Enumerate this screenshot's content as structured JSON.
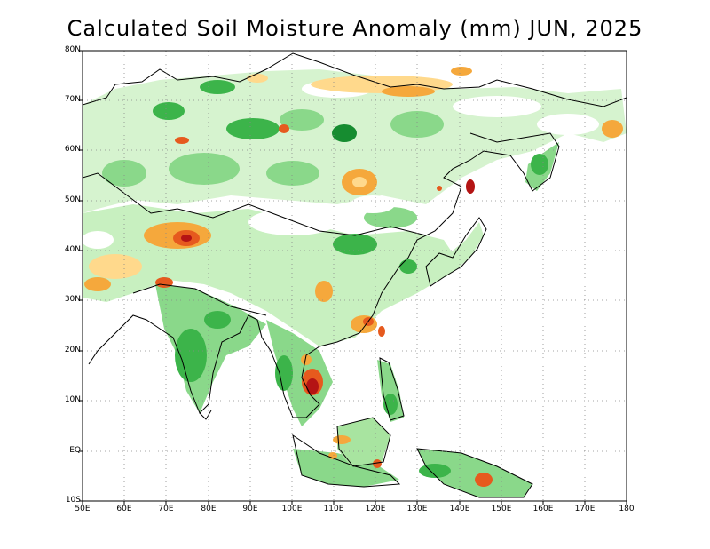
{
  "title": "Calculated Soil Moisture Anomaly (mm) JUN, 2025",
  "map": {
    "projection": "lat-lon",
    "lon_range": [
      50,
      180
    ],
    "lat_range": [
      -10,
      80
    ],
    "y_ticks": [
      "80N",
      "70N",
      "60N",
      "50N",
      "40N",
      "30N",
      "20N",
      "10N",
      "EQ",
      "10S"
    ],
    "x_ticks": [
      "50E",
      "60E",
      "70E",
      "80E",
      "90E",
      "100E",
      "110E",
      "120E",
      "130E",
      "140E",
      "150E",
      "160E",
      "170E",
      "180"
    ],
    "grid": "dotted",
    "colors": {
      "wet_light": "#c8f0c0",
      "wet_mid": "#8ad88a",
      "wet_strong": "#3cb44a",
      "wet_very": "#168c30",
      "dry_light": "#ffd98c",
      "dry_mid": "#f5a83c",
      "dry_strong": "#e65a1e",
      "dry_very": "#b41414"
    }
  }
}
